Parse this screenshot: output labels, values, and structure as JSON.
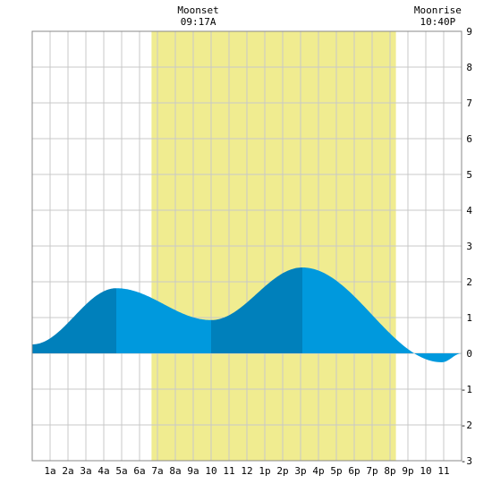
{
  "chart_data": {
    "type": "area",
    "title": "",
    "xlabel": "",
    "ylabel": "",
    "x_range_hours": [
      0,
      24
    ],
    "ylim": [
      -3,
      9
    ],
    "y_ticks": [
      -3,
      -2,
      -1,
      0,
      1,
      2,
      3,
      4,
      5,
      6,
      7,
      8,
      9
    ],
    "x_tick_labels": [
      {
        "hour": 1,
        "label": "1a"
      },
      {
        "hour": 2,
        "label": "2a"
      },
      {
        "hour": 3,
        "label": "3a"
      },
      {
        "hour": 4,
        "label": "4a"
      },
      {
        "hour": 5,
        "label": "5a"
      },
      {
        "hour": 6,
        "label": "6a"
      },
      {
        "hour": 7,
        "label": "7a"
      },
      {
        "hour": 8,
        "label": "8a"
      },
      {
        "hour": 9,
        "label": "9a"
      },
      {
        "hour": 10,
        "label": "10"
      },
      {
        "hour": 11,
        "label": "11"
      },
      {
        "hour": 12,
        "label": "12"
      },
      {
        "hour": 13,
        "label": "1p"
      },
      {
        "hour": 14,
        "label": "2p"
      },
      {
        "hour": 15,
        "label": "3p"
      },
      {
        "hour": 16,
        "label": "4p"
      },
      {
        "hour": 17,
        "label": "5p"
      },
      {
        "hour": 18,
        "label": "6p"
      },
      {
        "hour": 19,
        "label": "7p"
      },
      {
        "hour": 20,
        "label": "8p"
      },
      {
        "hour": 21,
        "label": "9p"
      },
      {
        "hour": 22,
        "label": "10"
      },
      {
        "hour": 23,
        "label": "11"
      }
    ],
    "grid": true,
    "daylight": {
      "start_hour": 6.67,
      "end_hour": 20.33
    },
    "events": [
      {
        "label": "Moonset",
        "time": "09:17A",
        "hour": 9.28
      },
      {
        "label": "Moonrise",
        "time": "10:40P",
        "hour": 22.67
      }
    ],
    "tide_extrema": [
      {
        "hour": 0.0,
        "value": 0.25
      },
      {
        "hour": 4.7,
        "value": 1.82
      },
      {
        "hour": 10.0,
        "value": 0.93
      },
      {
        "hour": 15.1,
        "value": 2.4
      },
      {
        "hour": 22.9,
        "value": -0.25
      },
      {
        "hour": 24.0,
        "value": 0.0
      }
    ],
    "shade_breaks_hours": [
      4.7,
      10.0,
      15.1
    ],
    "colors": {
      "daylight": "#f0ec90",
      "tide_light": "#0099dd",
      "tide_dark": "#0080bb",
      "grid": "#c8c8c8",
      "background": "#ffffff"
    }
  }
}
